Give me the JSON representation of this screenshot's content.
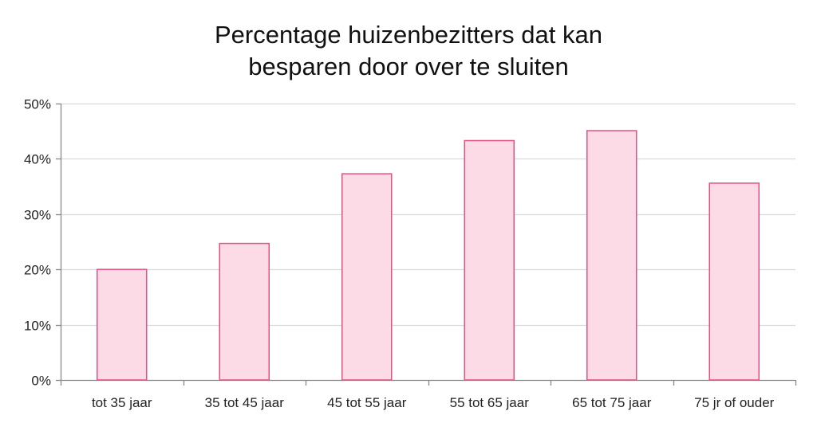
{
  "chart_data": {
    "type": "bar",
    "title_lines": [
      "Percentage huizenbezitters dat kan",
      "besparen door over te sluiten"
    ],
    "categories": [
      "tot 35 jaar",
      "35 tot 45 jaar",
      "45 tot 55 jaar",
      "55 tot 65 jaar",
      "65 tot 75 jaar",
      "75 jr of ouder"
    ],
    "values": [
      20,
      24.7,
      37.3,
      43.3,
      45.1,
      35.6
    ],
    "ylim": [
      0,
      50
    ],
    "yticks": [
      0,
      10,
      20,
      30,
      40,
      50
    ],
    "ytick_labels": [
      "0%",
      "10%",
      "20%",
      "30%",
      "40%",
      "50%"
    ],
    "grid": true,
    "colors": {
      "bar_fill": "#fcdbe6",
      "bar_stroke": "#e0527f",
      "grid": "#d9d9d9",
      "axis": "#888888"
    }
  }
}
